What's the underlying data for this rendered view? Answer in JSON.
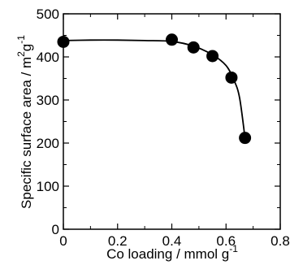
{
  "chart_data": {
    "type": "scatter",
    "title": "",
    "xlabel": "Co loading / mmol g",
    "xlabel_sup": "-1",
    "ylabel_pre": "Specific surface area / m",
    "ylabel_sup1": "2",
    "ylabel_mid": "g",
    "ylabel_sup2": "-1",
    "xlim": [
      0,
      0.8
    ],
    "ylim": [
      0,
      500
    ],
    "x_ticks": [
      0,
      0.2,
      0.4,
      0.6,
      0.8
    ],
    "x_tick_labels": [
      "0",
      "0.2",
      "0.4",
      "0.6",
      "0.8"
    ],
    "y_ticks": [
      0,
      100,
      200,
      300,
      400,
      500
    ],
    "y_tick_labels": [
      "0",
      "100",
      "200",
      "300",
      "400",
      "500"
    ],
    "grid": false,
    "series": [
      {
        "points": [
          {
            "x": 0.0,
            "y": 435
          },
          {
            "x": 0.4,
            "y": 440
          },
          {
            "x": 0.48,
            "y": 422
          },
          {
            "x": 0.55,
            "y": 402
          },
          {
            "x": 0.62,
            "y": 352
          },
          {
            "x": 0.67,
            "y": 212
          }
        ],
        "trend_line": [
          {
            "x": 0.0,
            "y": 438
          },
          {
            "x": 0.1,
            "y": 439
          },
          {
            "x": 0.2,
            "y": 439
          },
          {
            "x": 0.3,
            "y": 438
          },
          {
            "x": 0.4,
            "y": 436
          },
          {
            "x": 0.48,
            "y": 425
          },
          {
            "x": 0.55,
            "y": 405
          },
          {
            "x": 0.6,
            "y": 380
          },
          {
            "x": 0.63,
            "y": 345
          },
          {
            "x": 0.65,
            "y": 305
          },
          {
            "x": 0.67,
            "y": 212
          }
        ]
      }
    ]
  }
}
